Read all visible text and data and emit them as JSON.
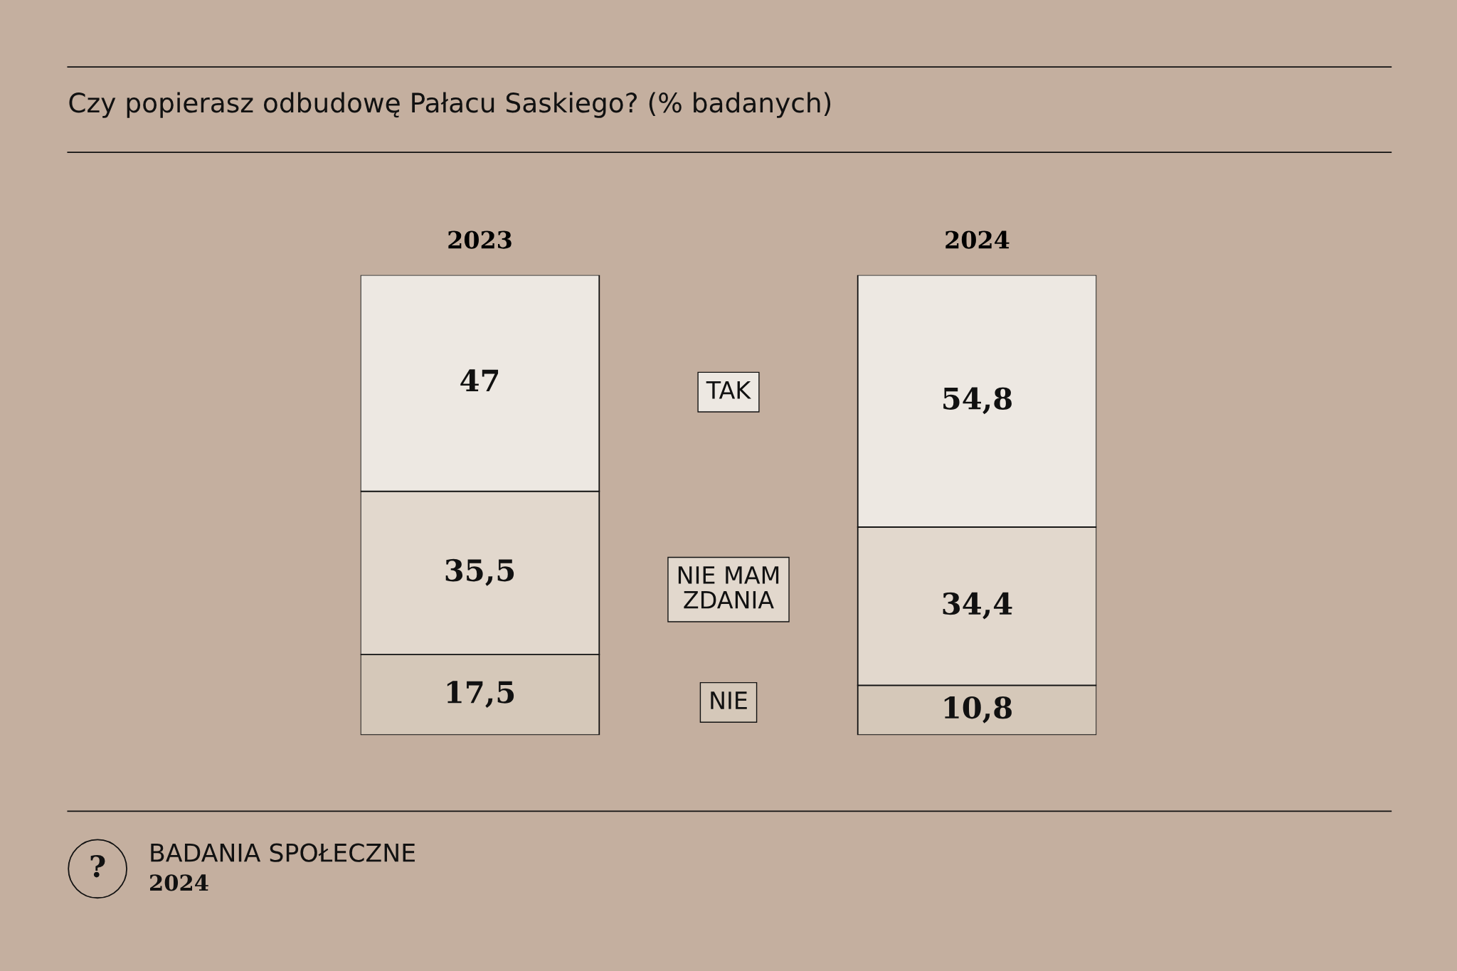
{
  "chart_data": {
    "type": "bar",
    "stacked": true,
    "title": "Czy popierasz odbudowę Pałacu Saskiego? (% badanych)",
    "categories": [
      "2023",
      "2024"
    ],
    "series": [
      {
        "name": "NIE",
        "color": "#d5c8b9",
        "values": [
          17.5,
          10.8
        ],
        "value_labels": [
          "17,5",
          "10,8"
        ]
      },
      {
        "name": "NIE MAM\nZDANIA",
        "color": "#e2d8cd",
        "values": [
          35.5,
          34.4
        ],
        "value_labels": [
          "35,5",
          "34,4"
        ]
      },
      {
        "name": "TAK",
        "color": "#ede8e2",
        "values": [
          47,
          54.8
        ],
        "value_labels": [
          "47",
          "54,8"
        ]
      }
    ],
    "annotations": [
      "BADANIA SPOŁECZNE",
      "2024",
      "?"
    ],
    "legend": false,
    "grid": false
  }
}
